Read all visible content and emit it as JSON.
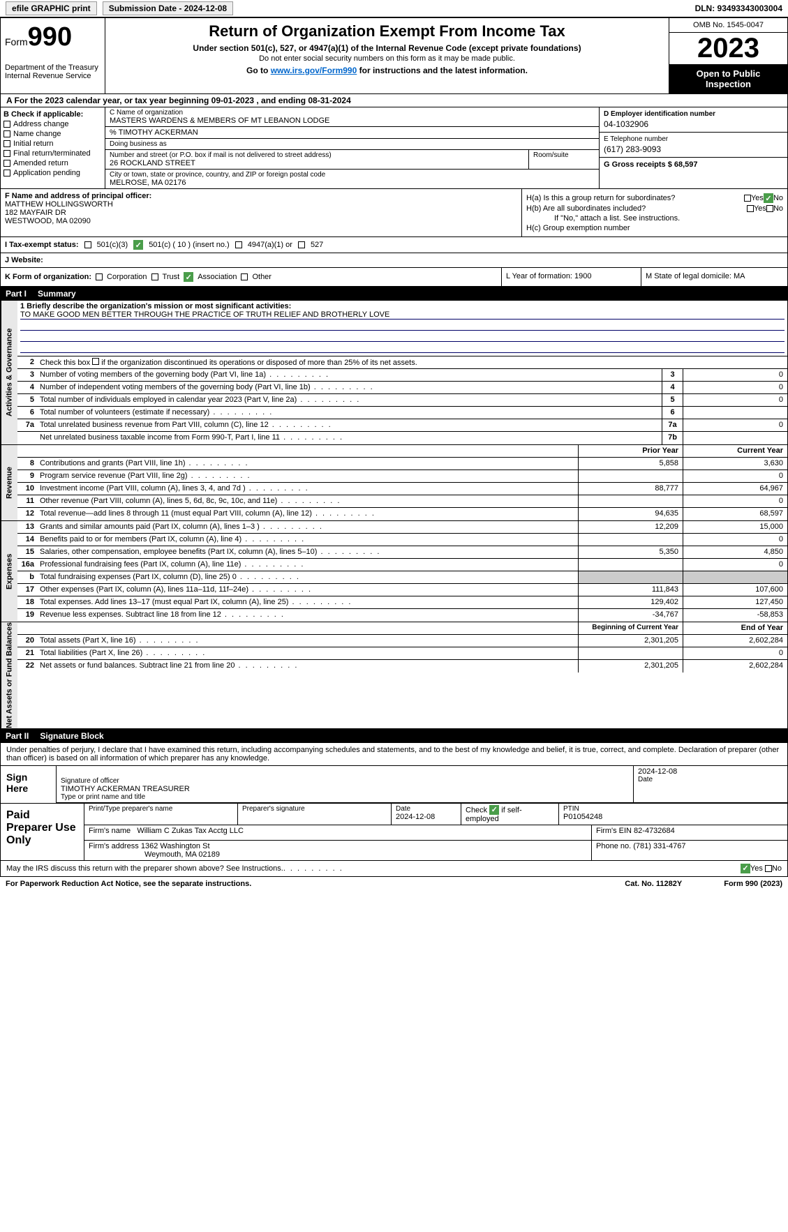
{
  "topbar": {
    "efile": "efile GRAPHIC print",
    "submission": "Submission Date - 2024-12-08",
    "dln": "DLN: 93493343003004"
  },
  "header": {
    "form_word": "Form",
    "form_num": "990",
    "dept": "Department of the Treasury Internal Revenue Service",
    "title": "Return of Organization Exempt From Income Tax",
    "subtitle": "Under section 501(c), 527, or 4947(a)(1) of the Internal Revenue Code (except private foundations)",
    "subtitle2": "Do not enter social security numbers on this form as it may be made public.",
    "goto_pre": "Go to ",
    "goto_link": "www.irs.gov/Form990",
    "goto_post": " for instructions and the latest information.",
    "omb": "OMB No. 1545-0047",
    "year": "2023",
    "inspect": "Open to Public Inspection"
  },
  "period": {
    "text": "A For the 2023 calendar year, or tax year beginning 09-01-2023    , and ending 08-31-2024",
    "service": "Service"
  },
  "checkboxes": {
    "b_label": "B Check if applicable:",
    "addr": "Address change",
    "name": "Name change",
    "initial": "Initial return",
    "final": "Final return/terminated",
    "amended": "Amended return",
    "app": "Application pending"
  },
  "section_c": {
    "name_lbl": "C Name of organization",
    "name": "MASTERS WARDENS & MEMBERS OF MT LEBANON LODGE",
    "co": "% TIMOTHY ACKERMAN",
    "dba_lbl": "Doing business as",
    "addr_lbl": "Number and street (or P.O. box if mail is not delivered to street address)",
    "room_lbl": "Room/suite",
    "addr": "26 ROCKLAND STREET",
    "city_lbl": "City or town, state or province, country, and ZIP or foreign postal code",
    "city": "MELROSE, MA   02176"
  },
  "section_d": {
    "ein_lbl": "D Employer identification number",
    "ein": "04-1032906",
    "phone_lbl": "E Telephone number",
    "phone": "(617) 283-9093",
    "gross_lbl": "G Gross receipts $ 68,597"
  },
  "section_f": {
    "lbl": "F  Name and address of principal officer:",
    "name": "MATTHEW HOLLINGSWORTH",
    "addr1": "182 MAYFAIR DR",
    "addr2": "WESTWOOD, MA  02090"
  },
  "section_h": {
    "ha": "H(a)  Is this a group return for subordinates?",
    "hb": "H(b)  Are all subordinates included?",
    "hb_note": "If \"No,\" attach a list. See instructions.",
    "hc": "H(c)  Group exemption number",
    "yes": "Yes",
    "no": "No"
  },
  "section_i": {
    "lbl": "I   Tax-exempt status:",
    "c3": "501(c)(3)",
    "c_other": "501(c) ( 10 ) (insert no.)",
    "a1": "4947(a)(1) or",
    "s527": "527"
  },
  "section_j": {
    "lbl": "J   Website:"
  },
  "section_k": {
    "lbl": "K Form of organization:",
    "corp": "Corporation",
    "trust": "Trust",
    "assoc": "Association",
    "other": "Other"
  },
  "section_l": {
    "text": "L Year of formation: 1900"
  },
  "section_m": {
    "text": "M State of legal domicile: MA"
  },
  "part1": {
    "num": "Part I",
    "title": "Summary"
  },
  "mission": {
    "lbl": "1   Briefly describe the organization's mission or most significant activities:",
    "text": "TO MAKE GOOD MEN BETTER THROUGH THE PRACTICE OF TRUTH RELIEF AND BROTHERLY LOVE"
  },
  "line2": "Check this box        if the organization discontinued its operations or disposed of more than 25% of its net assets.",
  "vtabs": {
    "gov": "Activities & Governance",
    "rev": "Revenue",
    "exp": "Expenses",
    "net": "Net Assets or Fund Balances"
  },
  "cols": {
    "prior": "Prior Year",
    "current": "Current Year",
    "begin": "Beginning of Current Year",
    "end": "End of Year"
  },
  "gov_rows": [
    {
      "n": "3",
      "d": "Number of voting members of the governing body (Part VI, line 1a)",
      "b": "3",
      "v": "0"
    },
    {
      "n": "4",
      "d": "Number of independent voting members of the governing body (Part VI, line 1b)",
      "b": "4",
      "v": "0"
    },
    {
      "n": "5",
      "d": "Total number of individuals employed in calendar year 2023 (Part V, line 2a)",
      "b": "5",
      "v": "0"
    },
    {
      "n": "6",
      "d": "Total number of volunteers (estimate if necessary)",
      "b": "6",
      "v": ""
    },
    {
      "n": "7a",
      "d": "Total unrelated business revenue from Part VIII, column (C), line 12",
      "b": "7a",
      "v": "0"
    },
    {
      "n": "",
      "d": "Net unrelated business taxable income from Form 990-T, Part I, line 11",
      "b": "7b",
      "v": ""
    }
  ],
  "rev_rows": [
    {
      "n": "8",
      "d": "Contributions and grants (Part VIII, line 1h)",
      "p": "5,858",
      "c": "3,630"
    },
    {
      "n": "9",
      "d": "Program service revenue (Part VIII, line 2g)",
      "p": "",
      "c": "0"
    },
    {
      "n": "10",
      "d": "Investment income (Part VIII, column (A), lines 3, 4, and 7d )",
      "p": "88,777",
      "c": "64,967"
    },
    {
      "n": "11",
      "d": "Other revenue (Part VIII, column (A), lines 5, 6d, 8c, 9c, 10c, and 11e)",
      "p": "",
      "c": "0"
    },
    {
      "n": "12",
      "d": "Total revenue—add lines 8 through 11 (must equal Part VIII, column (A), line 12)",
      "p": "94,635",
      "c": "68,597"
    }
  ],
  "exp_rows": [
    {
      "n": "13",
      "d": "Grants and similar amounts paid (Part IX, column (A), lines 1–3 )",
      "p": "12,209",
      "c": "15,000"
    },
    {
      "n": "14",
      "d": "Benefits paid to or for members (Part IX, column (A), line 4)",
      "p": "",
      "c": "0"
    },
    {
      "n": "15",
      "d": "Salaries, other compensation, employee benefits (Part IX, column (A), lines 5–10)",
      "p": "5,350",
      "c": "4,850"
    },
    {
      "n": "16a",
      "d": "Professional fundraising fees (Part IX, column (A), line 11e)",
      "p": "",
      "c": "0"
    },
    {
      "n": "b",
      "d": "Total fundraising expenses (Part IX, column (D), line 25) 0",
      "p": "shaded",
      "c": "shaded"
    },
    {
      "n": "17",
      "d": "Other expenses (Part IX, column (A), lines 11a–11d, 11f–24e)",
      "p": "111,843",
      "c": "107,600"
    },
    {
      "n": "18",
      "d": "Total expenses. Add lines 13–17 (must equal Part IX, column (A), line 25)",
      "p": "129,402",
      "c": "127,450"
    },
    {
      "n": "19",
      "d": "Revenue less expenses. Subtract line 18 from line 12",
      "p": "-34,767",
      "c": "-58,853"
    }
  ],
  "net_rows": [
    {
      "n": "20",
      "d": "Total assets (Part X, line 16)",
      "p": "2,301,205",
      "c": "2,602,284"
    },
    {
      "n": "21",
      "d": "Total liabilities (Part X, line 26)",
      "p": "",
      "c": "0"
    },
    {
      "n": "22",
      "d": "Net assets or fund balances. Subtract line 21 from line 20",
      "p": "2,301,205",
      "c": "2,602,284"
    }
  ],
  "part2": {
    "num": "Part II",
    "title": "Signature Block"
  },
  "sig": {
    "text": "Under penalties of perjury, I declare that I have examined this return, including accompanying schedules and statements, and to the best of my knowledge and belief, it is true, correct, and complete. Declaration of preparer (other than officer) is based on all information of which preparer has any knowledge.",
    "sign_here": "Sign Here",
    "date": "2024-12-08",
    "sig_lbl": "Signature of officer",
    "officer": "TIMOTHY ACKERMAN  TREASURER",
    "name_lbl": "Type or print name and title",
    "date_lbl": "Date"
  },
  "prep": {
    "title": "Paid Preparer Use Only",
    "name_lbl": "Print/Type preparer's name",
    "sig_lbl": "Preparer's signature",
    "date_lbl": "Date",
    "date": "2024-12-08",
    "self_lbl": "Check          if self-employed",
    "ptin_lbl": "PTIN",
    "ptin": "P01054248",
    "firm_name_lbl": "Firm's name",
    "firm_name": "William C Zukas Tax Acctg LLC",
    "firm_ein_lbl": "Firm's EIN",
    "firm_ein": "82-4732684",
    "firm_addr_lbl": "Firm's address",
    "firm_addr1": "1362 Washington St",
    "firm_addr2": "Weymouth, MA  02189",
    "phone_lbl": "Phone no.",
    "phone": "(781) 331-4767"
  },
  "discuss": {
    "text": "May the IRS discuss this return with the preparer shown above? See Instructions.",
    "yes": "Yes",
    "no": "No"
  },
  "footer": {
    "pra": "For Paperwork Reduction Act Notice, see the separate instructions.",
    "cat": "Cat. No. 11282Y",
    "form": "Form 990 (2023)"
  },
  "colors": {
    "link": "#0066cc",
    "green": "#4a9d4a",
    "shade": "#cccccc"
  }
}
